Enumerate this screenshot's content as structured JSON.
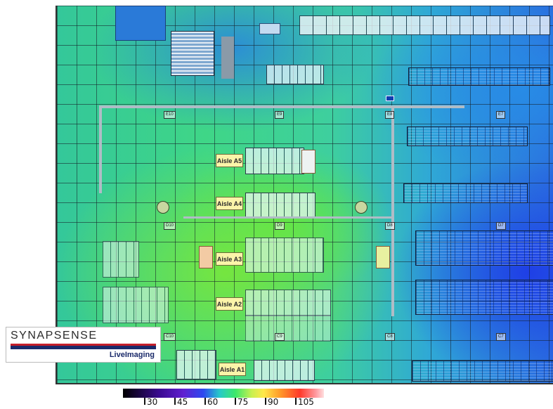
{
  "aisles": {
    "a5": "Aisle A5",
    "a4": "Aisle A4",
    "a3": "Aisle A3",
    "a2": "Aisle A2",
    "a1": "Aisle A1"
  },
  "columns": {
    "e10": "E10",
    "e9": "E9",
    "e8": "E8",
    "e7": "E7",
    "d10": "D10",
    "d9": "D9",
    "d8": "D8",
    "d7": "D7",
    "c10": "C10",
    "c9": "C9",
    "c8": "C8",
    "c7": "C7"
  },
  "logo": {
    "brand": "SYNAPSENSE",
    "product": "LiveImaging",
    "colors": {
      "brand_red": "#c41e2a",
      "brand_navy": "#1a2a6a"
    }
  },
  "scale": {
    "ticks": [
      "30",
      "45",
      "60",
      "75",
      "90",
      "105"
    ]
  },
  "heatmap": {
    "cool_color": "#2a6fe0",
    "warm_color": "#7fe050"
  }
}
